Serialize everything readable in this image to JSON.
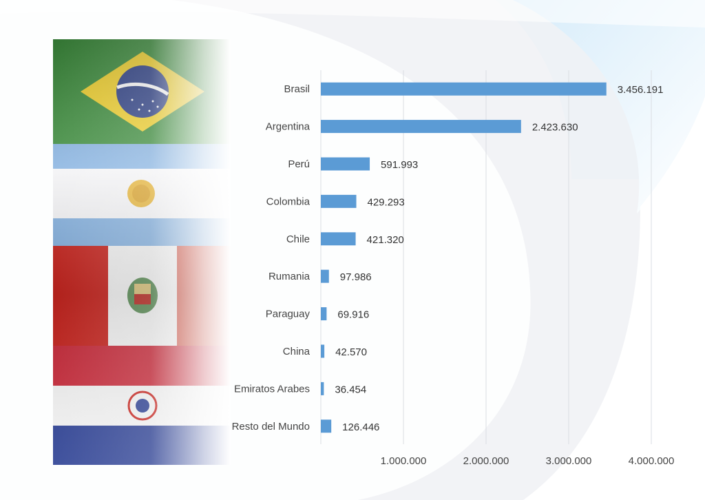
{
  "colors": {
    "bar": "#5b9bd5",
    "grid": "#dadde3",
    "accent_blue": "#cfe7f7",
    "flag_green": "#3c8d3c",
    "flag_yellow": "#f2d22c",
    "flag_blue": "#2c3f86",
    "flag_sky": "#86b2e0",
    "flag_red": "#c9251f",
    "flag_paraguay_blue": "#2b3f93"
  },
  "flags": [
    {
      "name": "Brasil"
    },
    {
      "name": "Argentina"
    },
    {
      "name": "Perú"
    },
    {
      "name": "Paraguay"
    }
  ],
  "chart_data": {
    "type": "bar",
    "orientation": "horizontal",
    "categories": [
      "Brasil",
      "Argentina",
      "Perú",
      "Colombia",
      "Chile",
      "Rumania",
      "Paraguay",
      "China",
      "Emiratos Arabes",
      "Resto del Mundo"
    ],
    "values": [
      3456191,
      2423630,
      591993,
      429293,
      421320,
      97986,
      69916,
      42570,
      36454,
      126446
    ],
    "value_labels": [
      "3.456.191",
      "2.423.630",
      "591.993",
      "429.293",
      "421.320",
      "97.986",
      "69.916",
      "42.570",
      "36.454",
      "126.446"
    ],
    "xlim": [
      0,
      4500000
    ],
    "xticks": [
      1000000,
      2000000,
      3000000,
      4000000
    ],
    "xtick_labels": [
      "1.000.000",
      "2.000.000",
      "3.000.000",
      "4.000.000"
    ],
    "grid": true,
    "legend": "none"
  }
}
